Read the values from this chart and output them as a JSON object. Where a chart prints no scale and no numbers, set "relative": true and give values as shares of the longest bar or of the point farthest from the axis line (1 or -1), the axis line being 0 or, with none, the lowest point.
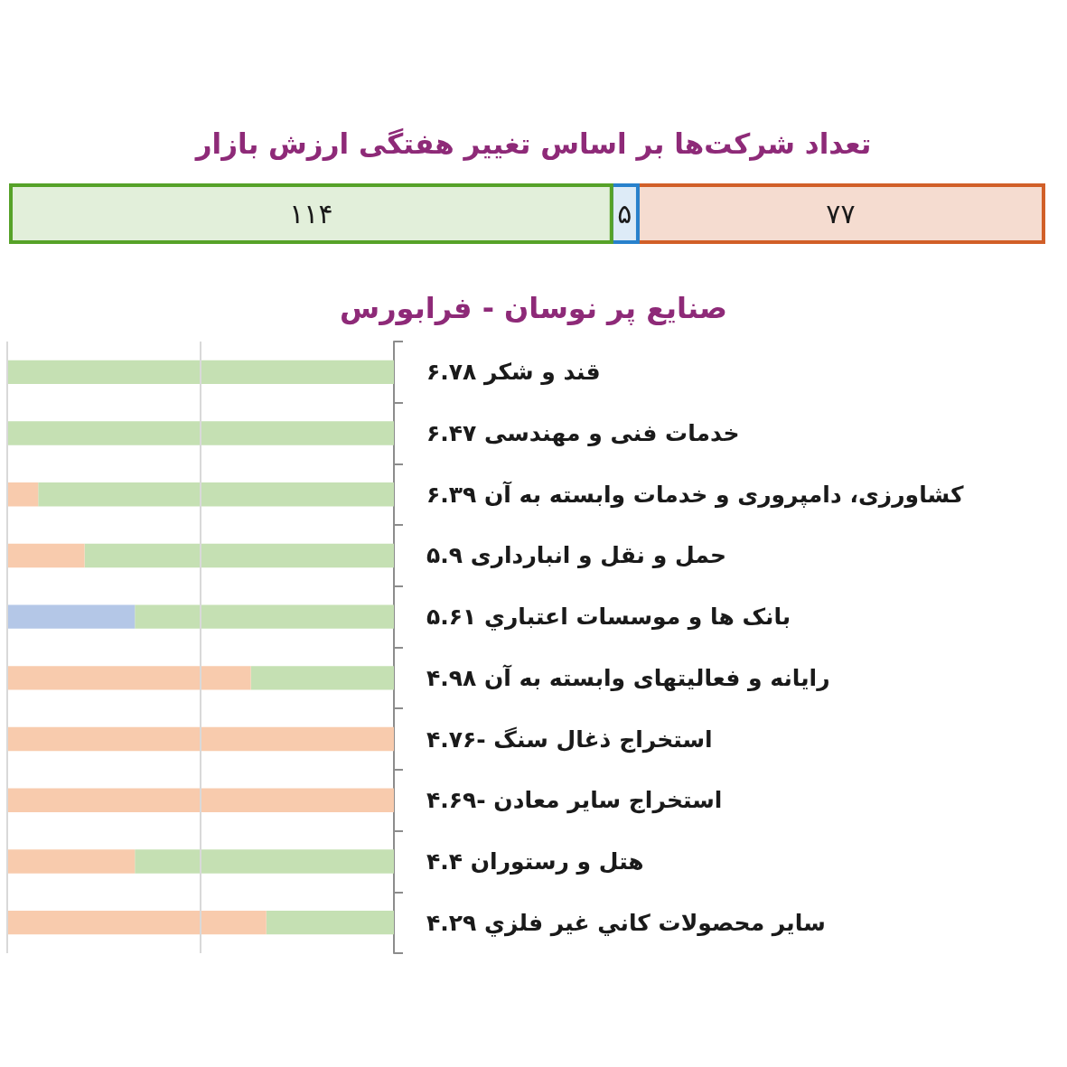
{
  "chart_data": [
    {
      "type": "bar",
      "title": "تعداد شرکت‌ها بر اساس تغییر هفتگی ارزش بازار",
      "orientation": "horizontal",
      "stacked": true,
      "categories": [
        null
      ],
      "tick_labels": false,
      "series": [
        {
          "color": "#f5dcd0",
          "values": [
            77
          ],
          "value_labels": [
            "۷۷"
          ]
        },
        {
          "color": "#ddebf7",
          "values": [
            5
          ],
          "value_labels": [
            "۵"
          ]
        },
        {
          "color": "#e2efda",
          "values": [
            114
          ],
          "value_labels": [
            "۱۱۴"
          ]
        }
      ]
    },
    {
      "type": "bar",
      "title": "صنایع پر نوسان - فرابورس",
      "orientation": "horizontal",
      "stacked": true,
      "relative": true,
      "ref_lines": [
        {
          "axis": "x",
          "value": 0.5,
          "color": "#d9d9d9"
        },
        {
          "axis": "x",
          "value": 1,
          "color": "#d9d9d9"
        }
      ],
      "categories": [
        "قند و شکر ۶.۷۸",
        "خدمات فنی و مهندسی ۶.۴۷",
        "کشاورزی، دامپروری و خدمات وابسته به آن ۶.۳۹",
        "حمل و نقل و انبارداری ۵.۹",
        "بانک ها و موسسات اعتباري ۵.۶۱",
        "رایانه و فعالیتهای وابسته به آن ۴.۹۸",
        "استخراج ذغال سنگ -۴.۷۶",
        "استخراج سایر معادن -۴.۶۹",
        "هتل و رستوران ۴.۴",
        "سایر محصولات کاني غیر فلزي ۴.۲۹"
      ],
      "series": [
        {
          "color": "#c5e0b3",
          "values": [
            1,
            1,
            0.92,
            0.8,
            0.67,
            0.37,
            null,
            null,
            0.67,
            0.33
          ]
        },
        {
          "color": "#b4c7e7",
          "values": [
            null,
            null,
            null,
            null,
            0.33,
            null,
            null,
            null,
            null,
            null
          ]
        },
        {
          "color": "#f8cbad",
          "values": [
            null,
            null,
            0.08,
            0.2,
            null,
            0.63,
            1,
            1,
            0.33,
            0.67
          ]
        }
      ]
    }
  ]
}
